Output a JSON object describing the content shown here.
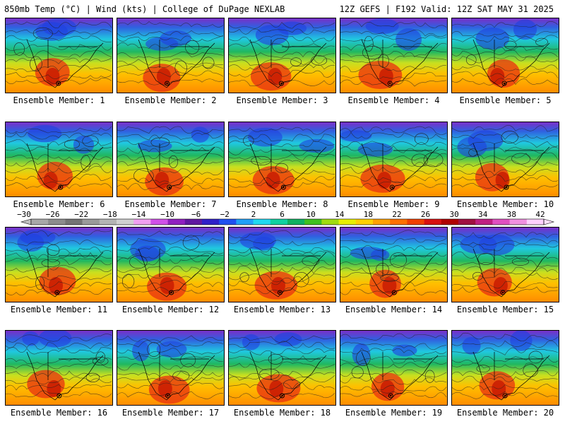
{
  "header": {
    "left": "850mb Temp (°C) | Wind (kts) | College of DuPage NEXLAB",
    "right": "12Z GEFS | F192 Valid: 12Z SAT MAY 31 2025"
  },
  "members": [
    "Ensemble Member: 1",
    "Ensemble Member: 2",
    "Ensemble Member: 3",
    "Ensemble Member: 4",
    "Ensemble Member: 5",
    "Ensemble Member: 6",
    "Ensemble Member: 7",
    "Ensemble Member: 8",
    "Ensemble Member: 9",
    "Ensemble Member: 10",
    "Ensemble Member: 11",
    "Ensemble Member: 12",
    "Ensemble Member: 13",
    "Ensemble Member: 14",
    "Ensemble Member: 15",
    "Ensemble Member: 16",
    "Ensemble Member: 17",
    "Ensemble Member: 18",
    "Ensemble Member: 19",
    "Ensemble Member: 20"
  ],
  "colorbar": {
    "ticks": [
      -30,
      -26,
      -22,
      -18,
      -14,
      -10,
      -6,
      -2,
      2,
      6,
      10,
      14,
      18,
      22,
      26,
      30,
      34,
      38,
      42
    ],
    "colors": [
      "#a8a8a8",
      "#8c8c8c",
      "#747474",
      "#9a9a9a",
      "#b4b4b4",
      "#d0d0d0",
      "#f0a0f0",
      "#d050e8",
      "#9020c0",
      "#6018a0",
      "#3020c8",
      "#2050f0",
      "#20a0f8",
      "#20d8f0",
      "#10d0a0",
      "#10b060",
      "#40c020",
      "#a0dc10",
      "#e8f000",
      "#ffd000",
      "#ffa000",
      "#ff7000",
      "#f04000",
      "#d81010",
      "#b00000",
      "#a01040",
      "#c02080",
      "#e050c0",
      "#f090e0",
      "#ffd0ff"
    ]
  }
}
